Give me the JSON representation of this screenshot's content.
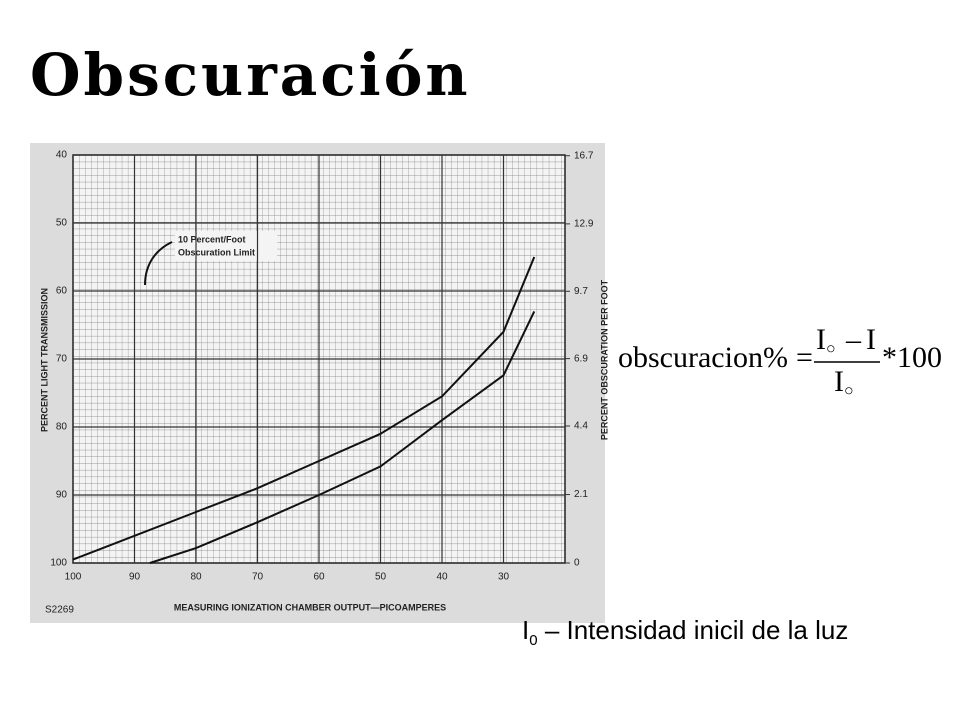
{
  "title": "Obscuración",
  "chart_data": {
    "type": "line",
    "x_label": "MEASURING IONIZATION CHAMBER OUTPUT—PICOAMPERES",
    "y_label": "PERCENT LIGHT TRANSMISSION",
    "y2_label": "PERCENT OBSCURATION PER FOOT",
    "annotation": [
      "10 Percent/Foot",
      "Obscuration Limit"
    ],
    "figure_id": "S2269",
    "xlim": [
      100,
      20
    ],
    "xticks": [
      100,
      90,
      80,
      70,
      60,
      50,
      40,
      30
    ],
    "ylim": [
      100,
      40
    ],
    "yticks": [
      40,
      50,
      60,
      70,
      80,
      90,
      100
    ],
    "y2lim": [
      0,
      16.7
    ],
    "y2ticks": [
      16.7,
      12.9,
      9.7,
      6.9,
      4.4,
      2.1,
      0
    ],
    "grid": true,
    "series": [
      {
        "color": "#111111",
        "x": [
          100,
          90,
          80,
          70,
          60,
          50,
          40,
          30,
          25
        ],
        "values": [
          99.5,
          96,
          92.5,
          89,
          85,
          81,
          75.5,
          66,
          55
        ]
      },
      {
        "color": "#111111",
        "x": [
          87.5,
          80,
          70,
          60,
          50,
          40,
          30,
          25
        ],
        "values": [
          100,
          97.8,
          94,
          90,
          85.8,
          79,
          72.4,
          63
        ]
      }
    ]
  },
  "formula": {
    "lhs": "obscuracion%",
    "equals": "=",
    "numerator": [
      "I",
      "○",
      "–",
      "I"
    ],
    "denominator": [
      "I",
      "○"
    ],
    "factor": "*100"
  },
  "caption": {
    "symbol": "I",
    "subscript": "0",
    "text": "– Intensidad inicil de la luz"
  }
}
